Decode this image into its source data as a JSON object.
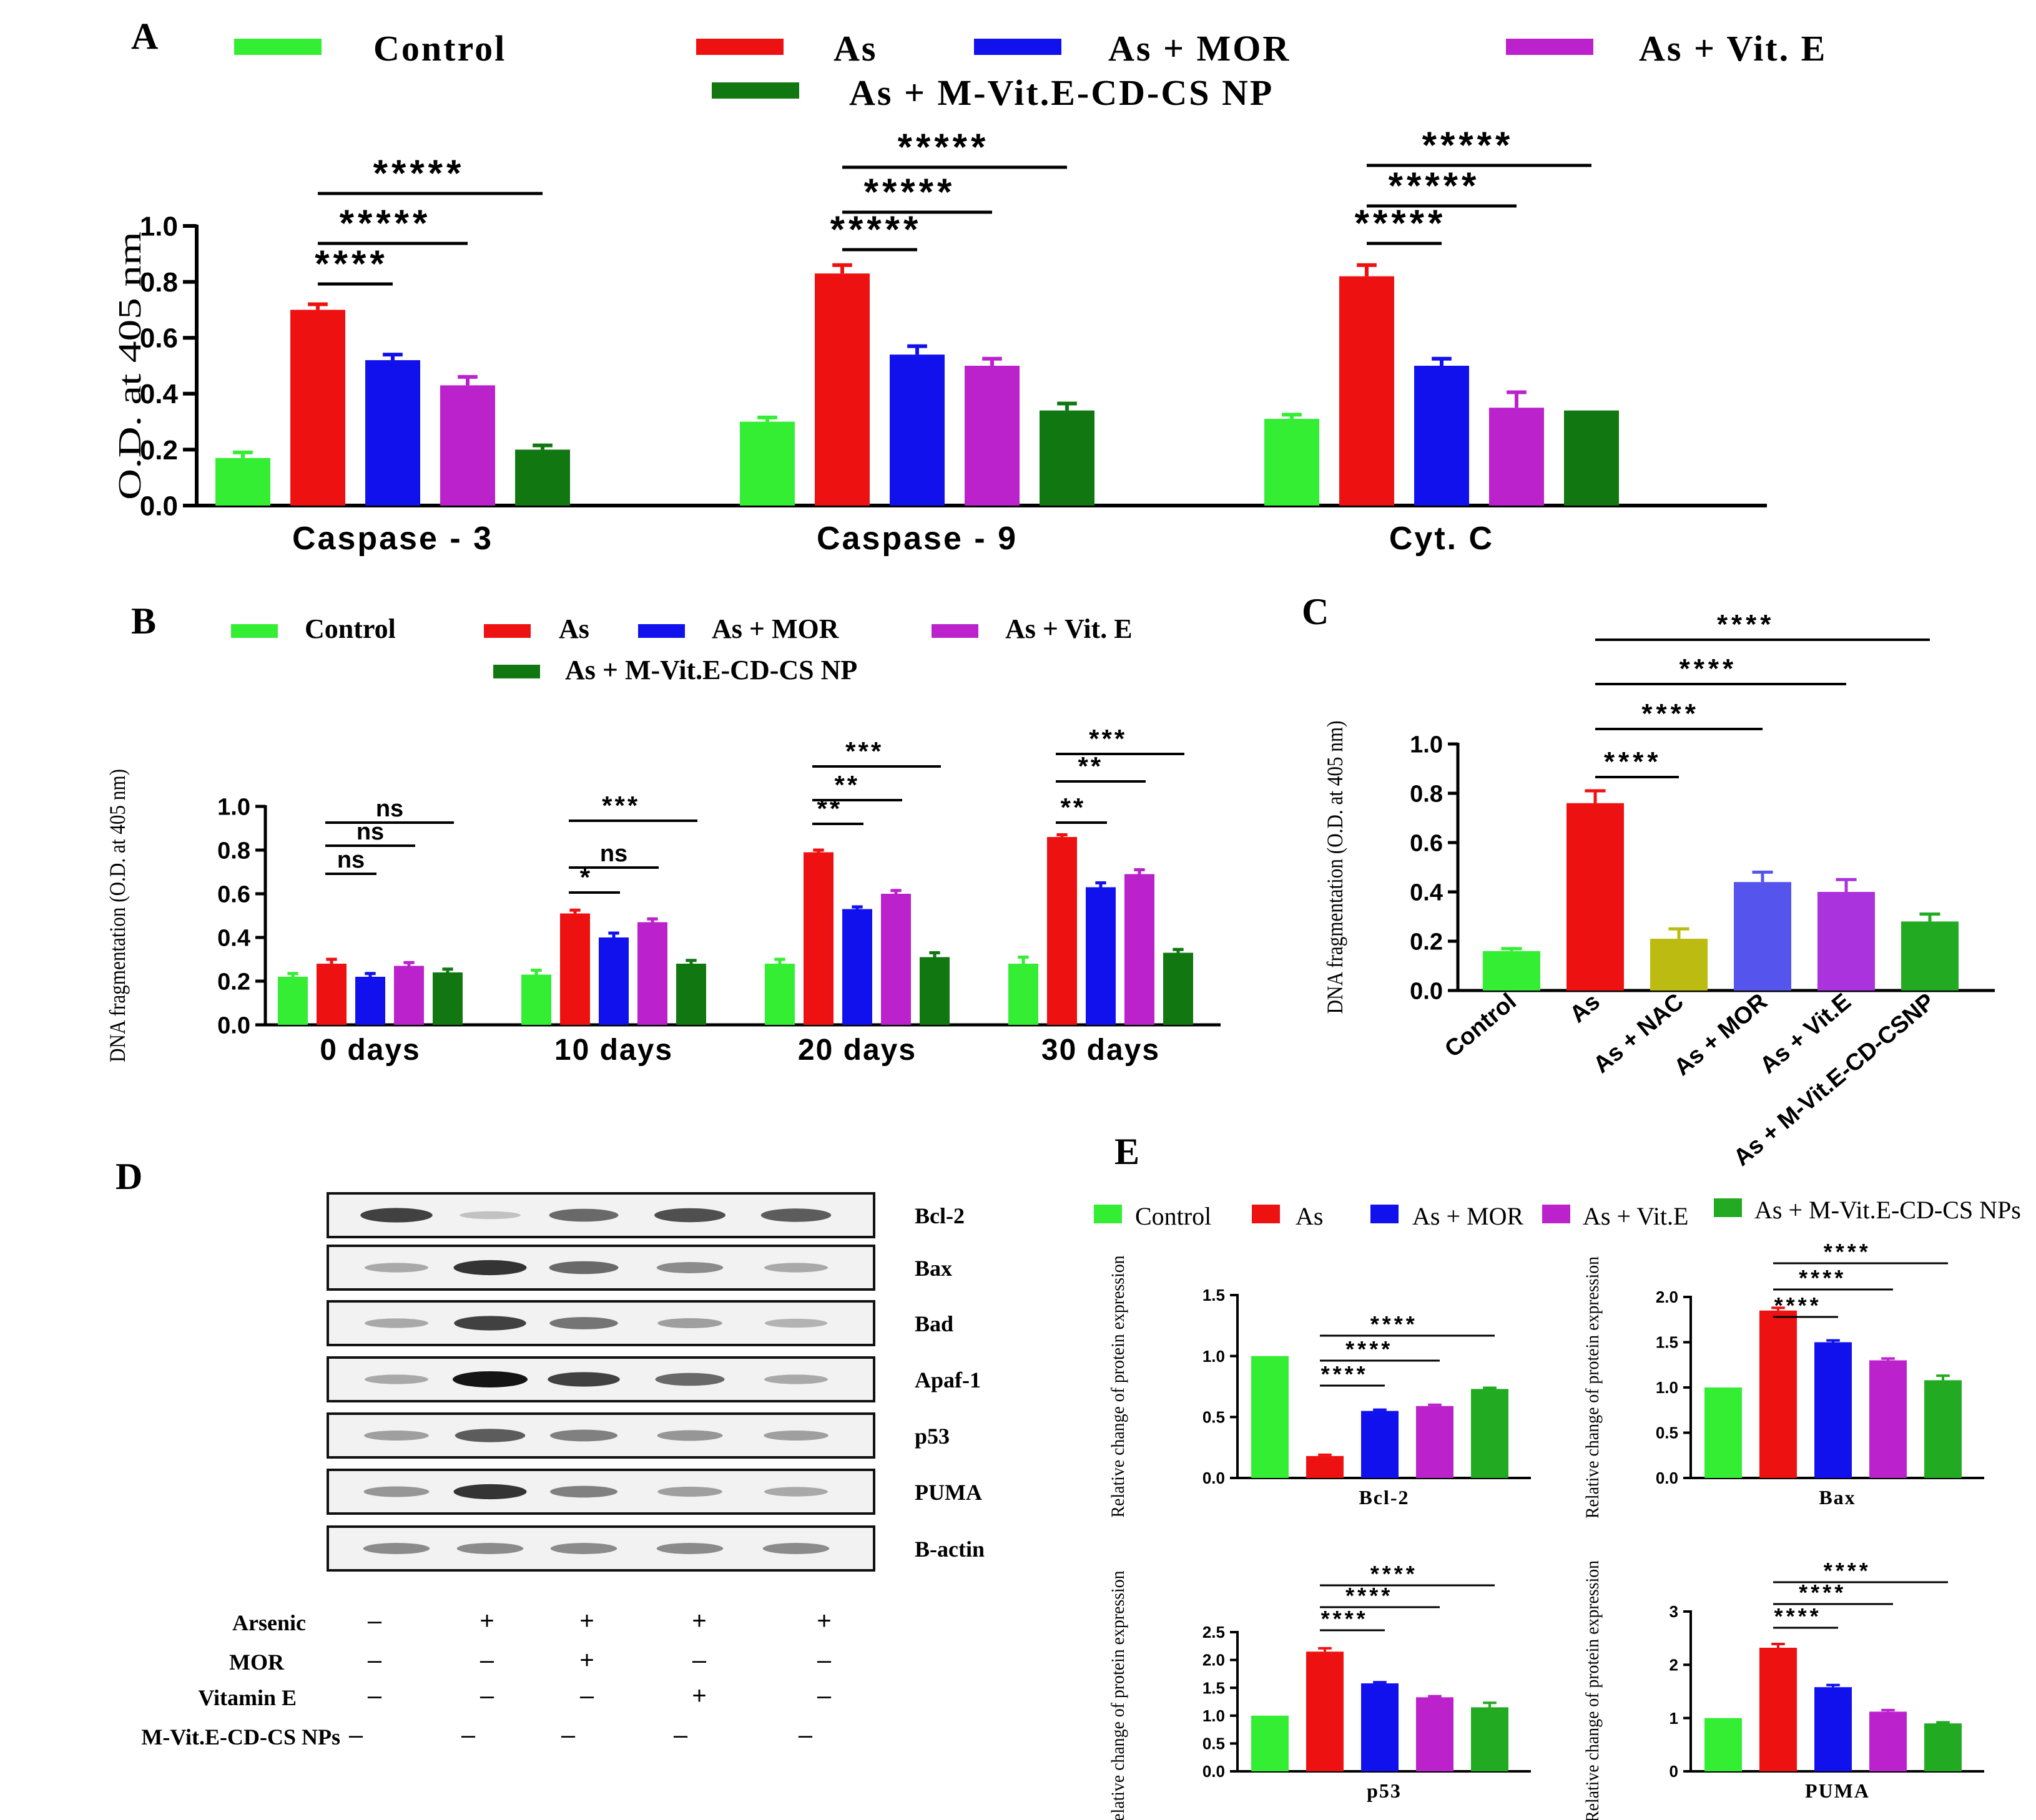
{
  "colors": {
    "control": "#33ee33",
    "as": "#ee1111",
    "as_mor": "#1111ee",
    "as_vite": "#bb22cc",
    "np": "#117711",
    "np_light": "#22aa22",
    "nac": "#bbbb11",
    "mor_light": "#5555ee",
    "vite_light": "#aa33dd"
  },
  "panels": {
    "A": "A",
    "B": "B",
    "C": "C",
    "D": "D",
    "E": "E"
  },
  "chart_data": [
    {
      "id": "A",
      "type": "bar",
      "title": "",
      "legend": [
        "Control",
        "As",
        "As + MOR",
        "As + Vit. E",
        "As + M-Vit.E-CD-CS NP"
      ],
      "categories": [
        "Caspase - 3",
        "Caspase - 9",
        "Cyt. C"
      ],
      "series": [
        {
          "name": "Control",
          "values": [
            0.17,
            0.3,
            0.31
          ],
          "errors": [
            0.02,
            0.015,
            0.015
          ]
        },
        {
          "name": "As",
          "values": [
            0.7,
            0.83,
            0.82
          ],
          "errors": [
            0.02,
            0.03,
            0.04
          ]
        },
        {
          "name": "As + MOR",
          "values": [
            0.52,
            0.54,
            0.5
          ],
          "errors": [
            0.02,
            0.03,
            0.025
          ]
        },
        {
          "name": "As + Vit. E",
          "values": [
            0.43,
            0.5,
            0.35
          ],
          "errors": [
            0.03,
            0.025,
            0.055
          ]
        },
        {
          "name": "As + M-Vit.E-CD-CS NP",
          "values": [
            0.2,
            0.34,
            0.34
          ],
          "errors": [
            0.015,
            0.025,
            0.0
          ]
        }
      ],
      "ylabel": "O.D. at 405 nm",
      "yticks": [
        "0.0",
        "0.2",
        "0.4",
        "0.6",
        "0.8",
        "1.0"
      ],
      "ylim": [
        0,
        1.0
      ],
      "significance": [
        {
          "group": 0,
          "from": 1,
          "to": 2,
          "text": "****"
        },
        {
          "group": 0,
          "from": 1,
          "to": 3,
          "text": "*****"
        },
        {
          "group": 0,
          "from": 1,
          "to": 4,
          "text": "*****"
        },
        {
          "group": 1,
          "from": 1,
          "to": 2,
          "text": "*****"
        },
        {
          "group": 1,
          "from": 1,
          "to": 3,
          "text": "*****"
        },
        {
          "group": 1,
          "from": 1,
          "to": 4,
          "text": "*****"
        },
        {
          "group": 2,
          "from": 1,
          "to": 2,
          "text": "*****"
        },
        {
          "group": 2,
          "from": 1,
          "to": 3,
          "text": "*****"
        },
        {
          "group": 2,
          "from": 1,
          "to": 4,
          "text": "*****"
        }
      ]
    },
    {
      "id": "B",
      "type": "bar",
      "title": "",
      "legend": [
        "Control",
        "As",
        "As + MOR",
        "As + Vit. E",
        "As + M-Vit.E-CD-CS NP"
      ],
      "categories": [
        "0 days",
        "10 days",
        "20 days",
        "30 days"
      ],
      "series": [
        {
          "name": "Control",
          "values": [
            0.22,
            0.23,
            0.28,
            0.28
          ],
          "errors": [
            0.015,
            0.02,
            0.02,
            0.03
          ]
        },
        {
          "name": "As",
          "values": [
            0.28,
            0.51,
            0.79,
            0.86
          ],
          "errors": [
            0.02,
            0.015,
            0.01,
            0.01
          ]
        },
        {
          "name": "As + MOR",
          "values": [
            0.22,
            0.4,
            0.53,
            0.63
          ],
          "errors": [
            0.015,
            0.02,
            0.01,
            0.02
          ]
        },
        {
          "name": "As + Vit. E",
          "values": [
            0.27,
            0.47,
            0.6,
            0.69
          ],
          "errors": [
            0.015,
            0.015,
            0.015,
            0.02
          ]
        },
        {
          "name": "As + M-Vit.E-CD-CS NP",
          "values": [
            0.24,
            0.28,
            0.31,
            0.33
          ],
          "errors": [
            0.015,
            0.015,
            0.02,
            0.015
          ]
        }
      ],
      "ylabel": "DNA fragmentation (O.D. at 405 nm)",
      "yticks": [
        "0.0",
        "0.2",
        "0.4",
        "0.6",
        "0.8",
        "1.0"
      ],
      "ylim": [
        0,
        1.0
      ],
      "significance": [
        {
          "group": 0,
          "from": 1,
          "to": 2,
          "text": "ns"
        },
        {
          "group": 0,
          "from": 1,
          "to": 3,
          "text": "ns"
        },
        {
          "group": 0,
          "from": 1,
          "to": 4,
          "text": "ns"
        },
        {
          "group": 1,
          "from": 1,
          "to": 2,
          "text": "*"
        },
        {
          "group": 1,
          "from": 1,
          "to": 3,
          "text": "ns"
        },
        {
          "group": 1,
          "from": 1,
          "to": 4,
          "text": "***"
        },
        {
          "group": 2,
          "from": 1,
          "to": 2,
          "text": "**"
        },
        {
          "group": 2,
          "from": 1,
          "to": 3,
          "text": "**"
        },
        {
          "group": 2,
          "from": 1,
          "to": 4,
          "text": "***"
        },
        {
          "group": 3,
          "from": 1,
          "to": 2,
          "text": "**"
        },
        {
          "group": 3,
          "from": 1,
          "to": 3,
          "text": "**"
        },
        {
          "group": 3,
          "from": 1,
          "to": 4,
          "text": "***"
        }
      ]
    },
    {
      "id": "C",
      "type": "bar",
      "title": "",
      "categories": [
        "Control",
        "As",
        "As + NAC",
        "As + MOR",
        "As + Vit.E",
        "As + M-Vit.E-CD-CSNP"
      ],
      "values": [
        0.16,
        0.76,
        0.21,
        0.44,
        0.4,
        0.28
      ],
      "errors": [
        0.01,
        0.05,
        0.04,
        0.04,
        0.05,
        0.03
      ],
      "ylabel": "DNA fragmentation (O.D. at 405 nm)",
      "yticks": [
        "0.0",
        "0.2",
        "0.4",
        "0.6",
        "0.8",
        "1.0"
      ],
      "ylim": [
        0,
        1.0
      ],
      "significance": [
        {
          "from": 1,
          "to": 2,
          "text": "****"
        },
        {
          "from": 1,
          "to": 3,
          "text": "****"
        },
        {
          "from": 1,
          "to": 4,
          "text": "****"
        },
        {
          "from": 1,
          "to": 5,
          "text": "****"
        }
      ]
    },
    {
      "id": "E-Bcl-2",
      "type": "bar",
      "title": "Bcl-2",
      "categories": [
        "Control",
        "As",
        "As + MOR",
        "As + Vit.E",
        "As + M-Vit.E-CD-CS NPs"
      ],
      "values": [
        1.0,
        0.18,
        0.55,
        0.59,
        0.73
      ],
      "errors": [
        0,
        0.01,
        0.01,
        0.01,
        0.01
      ],
      "ylabel": "Relative change of protein expression",
      "yticks": [
        "0.0",
        "0.5",
        "1.0",
        "1.5"
      ],
      "ylim": [
        0,
        1.5
      ],
      "significance": [
        {
          "from": 1,
          "to": 2,
          "text": "****"
        },
        {
          "from": 1,
          "to": 3,
          "text": "****"
        },
        {
          "from": 1,
          "to": 4,
          "text": "****"
        }
      ]
    },
    {
      "id": "E-Bax",
      "type": "bar",
      "title": "Bax",
      "categories": [
        "Control",
        "As",
        "As + MOR",
        "As + Vit.E",
        "As + M-Vit.E-CD-CS NPs"
      ],
      "values": [
        1.0,
        1.85,
        1.5,
        1.3,
        1.08
      ],
      "errors": [
        0,
        0.03,
        0.02,
        0.02,
        0.05
      ],
      "ylabel": "Relative change of protein expression",
      "yticks": [
        "0.0",
        "0.5",
        "1.0",
        "1.5",
        "2.0"
      ],
      "ylim": [
        0,
        2.0
      ],
      "significance": [
        {
          "from": 1,
          "to": 2,
          "text": "****"
        },
        {
          "from": 1,
          "to": 3,
          "text": "****"
        },
        {
          "from": 1,
          "to": 4,
          "text": "****"
        }
      ]
    },
    {
      "id": "E-p53",
      "type": "bar",
      "title": "p53",
      "categories": [
        "Control",
        "As",
        "As + MOR",
        "As + Vit.E",
        "As + M-Vit.E-CD-CS NPs"
      ],
      "values": [
        1.0,
        2.15,
        1.58,
        1.33,
        1.15
      ],
      "errors": [
        0,
        0.06,
        0.02,
        0.02,
        0.08
      ],
      "ylabel": "Relative change of protein expression",
      "yticks": [
        "0.0",
        "0.5",
        "1.0",
        "1.5",
        "2.0",
        "2.5"
      ],
      "ylim": [
        0,
        2.5
      ],
      "significance": [
        {
          "from": 1,
          "to": 2,
          "text": "****"
        },
        {
          "from": 1,
          "to": 3,
          "text": "****"
        },
        {
          "from": 1,
          "to": 4,
          "text": "****"
        }
      ]
    },
    {
      "id": "E-PUMA",
      "type": "bar",
      "title": "PUMA",
      "categories": [
        "Control",
        "As",
        "As + MOR",
        "As + Vit.E",
        "As + M-Vit.E-CD-CS NPs"
      ],
      "values": [
        1.0,
        2.32,
        1.58,
        1.12,
        0.9
      ],
      "errors": [
        0,
        0.07,
        0.04,
        0.03,
        0.02
      ],
      "ylabel": "Relative change of protein expression",
      "yticks": [
        "0",
        "1",
        "2",
        "3"
      ],
      "ylim": [
        0,
        3
      ],
      "significance": [
        {
          "from": 1,
          "to": 2,
          "text": "****"
        },
        {
          "from": 1,
          "to": 3,
          "text": "****"
        },
        {
          "from": 1,
          "to": 4,
          "text": "****"
        }
      ]
    }
  ],
  "legend_E": [
    "Control",
    "As",
    "As + MOR",
    "As + Vit.E",
    "As + M-Vit.E-CD-CS NPs"
  ],
  "western_blot": {
    "proteins": [
      "Bcl-2",
      "Bax",
      "Bad",
      "Apaf-1",
      "p53",
      "PUMA",
      "B-actin"
    ],
    "band_intensity": [
      [
        0.85,
        0.25,
        0.7,
        0.8,
        0.75
      ],
      [
        0.4,
        0.9,
        0.7,
        0.55,
        0.4
      ],
      [
        0.4,
        0.85,
        0.65,
        0.45,
        0.35
      ],
      [
        0.4,
        1.0,
        0.85,
        0.7,
        0.4
      ],
      [
        0.45,
        0.75,
        0.6,
        0.5,
        0.45
      ],
      [
        0.5,
        0.9,
        0.6,
        0.45,
        0.4
      ],
      [
        0.55,
        0.55,
        0.55,
        0.55,
        0.55
      ]
    ],
    "treatments": [
      {
        "label": "Arsenic",
        "signs": [
          "–",
          "+",
          "+",
          "+",
          "+"
        ]
      },
      {
        "label": "MOR",
        "signs": [
          "–",
          "–",
          "+",
          "–",
          "–"
        ]
      },
      {
        "label": "Vitamin E",
        "signs": [
          "–",
          "–",
          "–",
          "+",
          "–"
        ]
      },
      {
        "label": "M-Vit.E-CD-CS NPs",
        "signs": [
          "–",
          "–",
          "–",
          "–",
          "–"
        ]
      }
    ]
  }
}
